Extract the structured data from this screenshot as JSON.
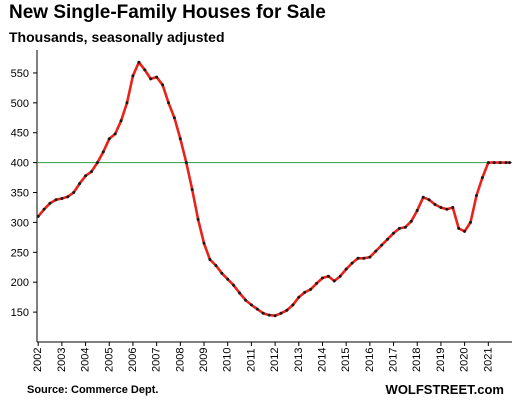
{
  "chart_data": {
    "type": "line",
    "title": "New Single-Family Houses for Sale",
    "subtitle": "Thousands, seasonally adjusted",
    "xlabel": "",
    "ylabel": "",
    "x_ticks": [
      "2002",
      "2003",
      "2004",
      "2005",
      "2006",
      "2007",
      "2008",
      "2009",
      "2010",
      "2011",
      "2012",
      "2013",
      "2014",
      "2015",
      "2016",
      "2017",
      "2018",
      "2019",
      "2020",
      "2021"
    ],
    "y_ticks": [
      150,
      200,
      250,
      300,
      350,
      400,
      450,
      500,
      550
    ],
    "xlim": [
      2002,
      2021.95
    ],
    "ylim": [
      100,
      580
    ],
    "grid": false,
    "reference_line": {
      "value": 400,
      "color": "#2e9e3e"
    },
    "line_color": "#e8231a",
    "marker_color": "#1a1a1a",
    "series": [
      {
        "x": [
          2002.0,
          2002.25,
          2002.5,
          2002.75,
          2003.0,
          2003.25,
          2003.5,
          2003.75,
          2004.0,
          2004.25,
          2004.5,
          2004.75,
          2005.0,
          2005.25,
          2005.5,
          2005.75,
          2006.0,
          2006.25,
          2006.5,
          2006.75,
          2007.0,
          2007.25,
          2007.5,
          2007.75,
          2008.0,
          2008.25,
          2008.5,
          2008.75,
          2009.0,
          2009.25,
          2009.5,
          2009.75,
          2010.0,
          2010.25,
          2010.5,
          2010.75,
          2011.0,
          2011.25,
          2011.5,
          2011.75,
          2012.0,
          2012.25,
          2012.5,
          2012.75,
          2013.0,
          2013.25,
          2013.5,
          2013.75,
          2014.0,
          2014.25,
          2014.5,
          2014.75,
          2015.0,
          2015.25,
          2015.5,
          2015.75,
          2016.0,
          2016.25,
          2016.5,
          2016.75,
          2017.0,
          2017.25,
          2017.5,
          2017.75,
          2018.0,
          2018.25,
          2018.5,
          2018.75,
          2019.0,
          2019.25,
          2019.5,
          2019.75,
          2020.0,
          2020.25,
          2020.5,
          2020.75,
          2021.0,
          2021.25,
          2021.5,
          2021.75,
          2021.9
        ],
        "values": [
          310,
          322,
          332,
          338,
          340,
          343,
          350,
          365,
          378,
          385,
          400,
          418,
          440,
          448,
          470,
          500,
          545,
          568,
          555,
          540,
          543,
          530,
          500,
          475,
          440,
          400,
          355,
          305,
          265,
          238,
          228,
          215,
          205,
          195,
          182,
          170,
          162,
          155,
          148,
          145,
          144,
          148,
          153,
          162,
          175,
          183,
          188,
          198,
          207,
          210,
          202,
          210,
          222,
          232,
          240,
          240,
          242,
          252,
          262,
          272,
          282,
          290,
          292,
          302,
          320,
          342,
          338,
          330,
          325,
          322,
          325,
          290,
          285,
          300,
          345,
          375,
          400,
          400,
          400,
          400,
          400
        ]
      }
    ]
  },
  "footer": {
    "source": "Source: Commerce Dept.",
    "brand": "WOLFSTREET.com"
  }
}
